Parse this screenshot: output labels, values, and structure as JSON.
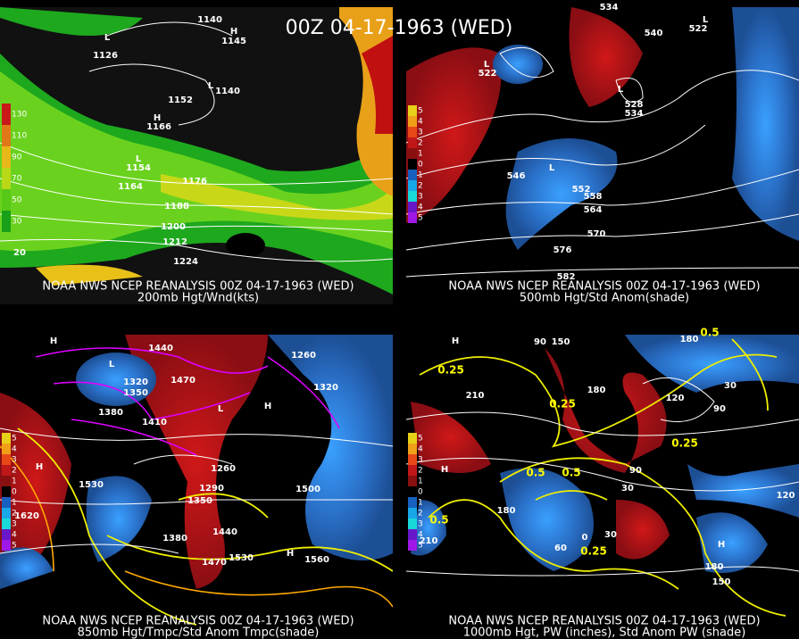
{
  "title": "00Z 04-17-1963 (WED)",
  "panels": [
    {
      "source": "NOAA NWS NCEP REANALYSIS 00Z 04-17-1963 (WED)",
      "caption": "200mb Hgt/Wnd(kts)",
      "legend": [
        "130",
        "110",
        "90",
        "70",
        "50",
        "30"
      ],
      "labels": [
        "1140",
        "L",
        "1126",
        "H",
        "1145",
        "1152",
        "L",
        "1140",
        "H",
        "1166",
        "L",
        "1154",
        "1164",
        "1176",
        "1188",
        "1200",
        "1212",
        "1224",
        "20"
      ]
    },
    {
      "source": "NOAA NWS NCEP REANALYSIS 00Z 04-17-1963 (WED)",
      "caption": "500mb Hgt/Std Anom(shade)",
      "legend": [
        "5",
        "4",
        "3",
        "2",
        "1",
        "0",
        "1",
        "2",
        "3",
        "4",
        "5"
      ],
      "labels": [
        "534",
        "540",
        "L",
        "522",
        "L",
        "522",
        "L",
        "528",
        "534",
        "L",
        "546",
        "552",
        "558",
        "564",
        "570",
        "576",
        "582"
      ]
    },
    {
      "source": "NOAA NWS NCEP REANALYSIS 00Z 04-17-1963 (WED)",
      "caption": "850mb Hgt/Tmpc/Std Anom Tmpc(shade)",
      "legend": [
        "5",
        "4",
        "3",
        "2",
        "1",
        "0",
        "1",
        "2",
        "3",
        "4",
        "5"
      ],
      "labels": [
        "H",
        "1440",
        "L",
        "1320",
        "1350",
        "1380",
        "1470",
        "L",
        "1410",
        "H",
        "1260",
        "1290",
        "1350",
        "1530",
        "H",
        "1620",
        "1500",
        "1380",
        "1440",
        "1470",
        "1530",
        "H",
        "1560",
        "1320",
        "1260"
      ]
    },
    {
      "source": "NOAA NWS NCEP REANALYSIS 00Z 04-17-1963 (WED)",
      "caption": "1000mb Hgt, PW (inches), Std Anom PW (shade)",
      "legend": [
        "5",
        "4",
        "3",
        "2",
        "1",
        "0",
        "1",
        "2",
        "3",
        "4",
        "5"
      ],
      "labels": [
        "90",
        "150",
        "180",
        "210",
        "180",
        "120",
        "90",
        "30",
        "H",
        "H",
        "180",
        "H",
        "150",
        "120",
        "90",
        "30",
        "210",
        "60",
        "0",
        "30",
        "180"
      ],
      "pw_labels": [
        "0.25",
        "0.25",
        "0.25",
        "0.5",
        "0.5",
        "0.5",
        "0.25",
        "0.5"
      ]
    }
  ]
}
